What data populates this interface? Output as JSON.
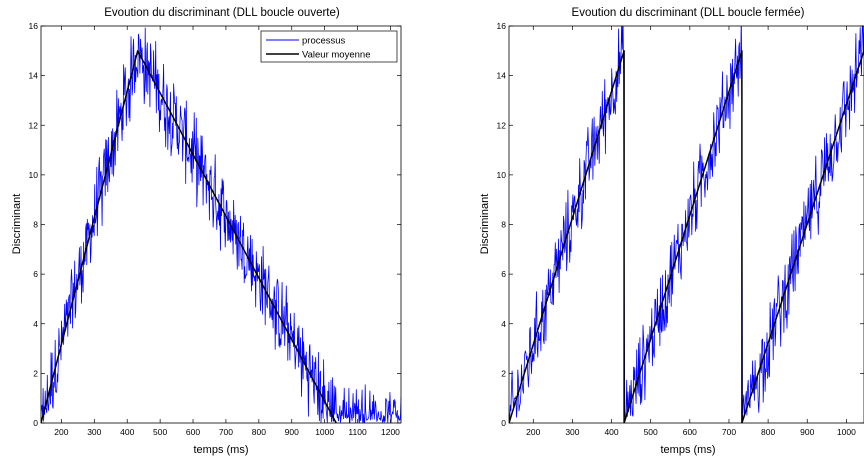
{
  "chart_data": [
    {
      "type": "line",
      "title": "Evoution du discriminant (DLL boucle ouverte)",
      "xlabel": "temps (ms)",
      "ylabel": "Discriminant",
      "xlim": [
        138,
        1232
      ],
      "ylim": [
        0,
        16
      ],
      "xticks": [
        200,
        300,
        400,
        500,
        600,
        700,
        800,
        900,
        1000,
        1100,
        1200
      ],
      "yticks": [
        0,
        2,
        4,
        6,
        8,
        10,
        12,
        14,
        16
      ],
      "legend": {
        "position": "top-right",
        "entries": [
          "processus",
          "Valeur moyenne"
        ]
      },
      "series": [
        {
          "name": "processus",
          "color": "#0000ff",
          "style": "noisy",
          "x_range": [
            138,
            1232
          ],
          "noise_amplitude": 1.6,
          "mean_x": [
            138,
            432,
            1035,
            1232
          ],
          "mean_y": [
            0,
            15,
            0,
            0
          ]
        },
        {
          "name": "Valeur moyenne",
          "color": "#000000",
          "x": [
            138,
            432,
            1035
          ],
          "y": [
            0,
            15,
            0
          ]
        }
      ]
    },
    {
      "type": "line",
      "title": "Evoution du discriminant (DLL boucle fermée)",
      "xlabel": "temps (ms)",
      "ylabel": "Discriminant",
      "xlim": [
        138,
        1045
      ],
      "ylim": [
        0,
        16
      ],
      "xticks": [
        200,
        300,
        400,
        500,
        600,
        700,
        800,
        900,
        1000
      ],
      "yticks": [
        0,
        2,
        4,
        6,
        8,
        10,
        12,
        14,
        16
      ],
      "series": [
        {
          "name": "",
          "color": "#0000ff",
          "style": "noisy",
          "x_range": [
            138,
            1045
          ],
          "noise_amplitude": 1.6,
          "mean_x": [
            138,
            432,
            432.5,
            733,
            733.5,
            1045
          ],
          "mean_y": [
            0,
            15,
            0,
            15,
            0,
            15
          ]
        },
        {
          "name": "",
          "color": "#000000",
          "x": [
            138,
            432,
            432,
            733,
            733,
            1045
          ],
          "y": [
            0,
            15,
            0,
            15,
            0,
            15
          ]
        }
      ]
    }
  ]
}
